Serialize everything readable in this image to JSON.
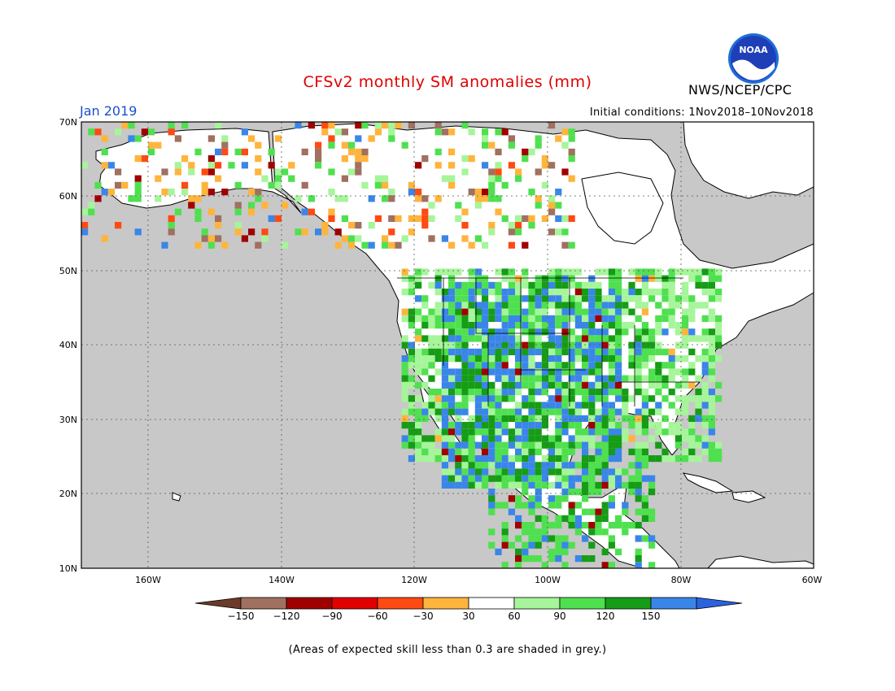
{
  "title": "CFSv2 monthly SM anomalies (mm)",
  "valid_month": "Jan 2019",
  "initial_conditions": "Initial conditions: 1Nov2018–10Nov2018",
  "agency": "NWS/NCEP/CPC",
  "logo_text": "NOAA",
  "footnote": "(Areas of expected skill less than 0.3 are shaded in grey.)",
  "map": {
    "lat_labels": [
      "70N",
      "60N",
      "50N",
      "40N",
      "30N",
      "20N",
      "10N"
    ],
    "lon_labels": [
      "160W",
      "140W",
      "120W",
      "100W",
      "80W",
      "60W"
    ]
  },
  "legend": {
    "labels": [
      "−150",
      "−120",
      "−90",
      "−60",
      "−30",
      "30",
      "60",
      "90",
      "120",
      "150"
    ],
    "colors": [
      "#6b3a2a",
      "#a07060",
      "#a00000",
      "#e00000",
      "#ff4a12",
      "#ffb43c",
      "#ffffff",
      "#a6f59a",
      "#4fe04f",
      "#169c16",
      "#3a86e8",
      "#2a62e0"
    ]
  },
  "colors": {
    "ocean": "#c8c8c8",
    "land": "#ffffff",
    "title": "#e00000",
    "month": "#1a4fd0"
  }
}
